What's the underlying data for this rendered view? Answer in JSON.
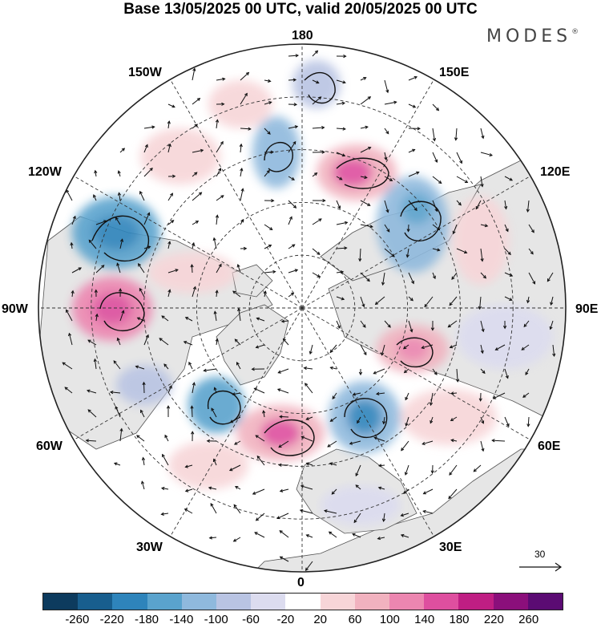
{
  "title": "Base 13/05/2025 00 UTC, valid 20/05/2025 00 UTC",
  "brand": {
    "name": "MODES",
    "mark": "®"
  },
  "map": {
    "projection": "north-polar-stereographic",
    "land_color": "#e6e6e6",
    "graticule_style": "dashed",
    "longitude_labels": {
      "top": "180",
      "top_right": "150E",
      "upper_right": "120E",
      "right": "90E",
      "lower_right": "60E",
      "bottom_right": "30E",
      "bottom": "0",
      "bottom_left": "30W",
      "lower_left": "60W",
      "left": "90W",
      "upper_left": "120W",
      "top_left": "150W"
    }
  },
  "wind_scale": {
    "value": "30"
  },
  "colorbar": {
    "colors": [
      "#0d3b5e",
      "#185e8e",
      "#2e84bb",
      "#5aa3cd",
      "#8fb9dd",
      "#b9c4e3",
      "#dcdcef",
      "#ffffff",
      "#f7d5d8",
      "#f1b2bf",
      "#ec86b0",
      "#de4f9f",
      "#bf1e83",
      "#8b0f7b",
      "#5b0b73"
    ],
    "ticks": [
      "-260",
      "-220",
      "-180",
      "-140",
      "-100",
      "-60",
      "-20",
      "20",
      "60",
      "100",
      "140",
      "180",
      "220",
      "260"
    ]
  }
}
